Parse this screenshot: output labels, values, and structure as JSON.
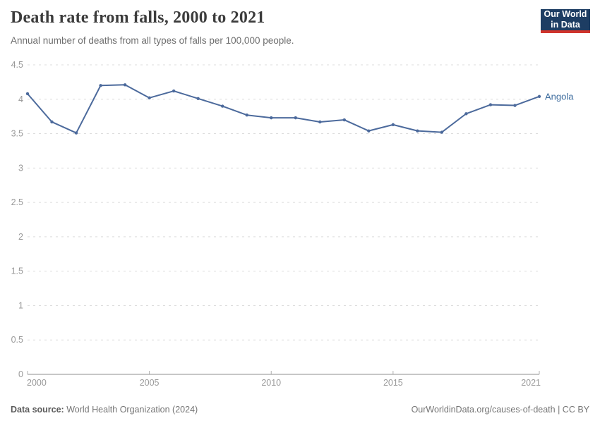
{
  "header": {
    "logo": {
      "line1": "Our World",
      "line2": "in Data"
    }
  },
  "footer": {
    "source_label": "Data source:",
    "source_text": " World Health Organization (2024)",
    "citation": "OurWorldinData.org/causes-of-death | CC BY"
  },
  "colors": {
    "line": "#4c6a9c",
    "series_label": "#3d6c9e",
    "logo_bg": "#1d3d63",
    "logo_red": "#d0342c",
    "grid": "#dcdcdc",
    "axis": "#8f8f8f",
    "tick_text": "#999999",
    "title_text": "#3c3c3c",
    "subtitle_text": "#6e6e6e",
    "footer_text": "#757575"
  },
  "chart_data": {
    "type": "line",
    "title": "Death rate from falls, 2000 to 2021",
    "subtitle": "Annual number of deaths from all types of falls per 100,000 people.",
    "x": [
      2000,
      2001,
      2002,
      2003,
      2004,
      2005,
      2006,
      2007,
      2008,
      2009,
      2010,
      2011,
      2012,
      2013,
      2014,
      2015,
      2016,
      2017,
      2018,
      2019,
      2020,
      2021
    ],
    "series": [
      {
        "name": "Angola",
        "color": "#4c6a9c",
        "values": [
          4.08,
          3.67,
          3.51,
          4.2,
          4.21,
          4.02,
          4.12,
          4.01,
          3.9,
          3.77,
          3.73,
          3.73,
          3.67,
          3.7,
          3.54,
          3.63,
          3.54,
          3.52,
          3.79,
          3.92,
          3.91,
          4.04
        ]
      }
    ],
    "xlim": [
      2000,
      2021
    ],
    "ylim": [
      0,
      4.5
    ],
    "y_ticks": [
      {
        "value": 4.5,
        "label": "4.5"
      },
      {
        "value": 4,
        "label": "4"
      },
      {
        "value": 3.5,
        "label": "3.5"
      },
      {
        "value": 3,
        "label": "3"
      },
      {
        "value": 2.5,
        "label": "2.5"
      },
      {
        "value": 2,
        "label": "2"
      },
      {
        "value": 1.5,
        "label": "1.5"
      },
      {
        "value": 1,
        "label": "1"
      },
      {
        "value": 0.5,
        "label": "0.5"
      },
      {
        "value": 0,
        "label": "0"
      }
    ],
    "x_ticks": [
      {
        "value": 2000,
        "label": "2000",
        "align": "start"
      },
      {
        "value": 2005,
        "label": "2005",
        "align": "middle"
      },
      {
        "value": 2010,
        "label": "2010",
        "align": "middle"
      },
      {
        "value": 2015,
        "label": "2015",
        "align": "middle"
      },
      {
        "value": 2021,
        "label": "2021",
        "align": "end"
      }
    ],
    "grid": "horizontal-dashed",
    "legend": "inline-end-label"
  }
}
